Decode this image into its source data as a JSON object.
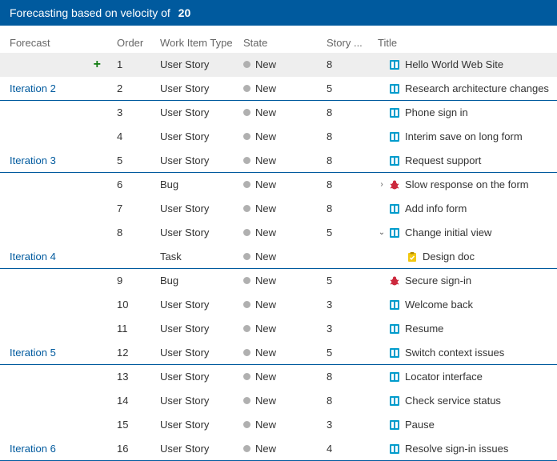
{
  "header": {
    "prefix": "Forecasting based on velocity of",
    "velocity": "20"
  },
  "columns": {
    "forecast": "Forecast",
    "order": "Order",
    "type": "Work Item Type",
    "state": "State",
    "story": "Story ...",
    "title": "Title"
  },
  "state_label": "New",
  "colors": {
    "story_icon": "#009ccc",
    "bug_icon": "#cc293d",
    "task_icon": "#f2c811",
    "accent": "#005a9e"
  },
  "rows": [
    {
      "forecast": "",
      "plus": true,
      "order": "1",
      "type": "User Story",
      "story": "8",
      "icon": "story",
      "title": "Hello World Web Site",
      "highlight": true
    },
    {
      "forecast": "Iteration 2",
      "plus": false,
      "order": "2",
      "type": "User Story",
      "story": "5",
      "icon": "story",
      "title": "Research architecture changes",
      "iteration": true
    },
    {
      "forecast": "",
      "plus": false,
      "order": "3",
      "type": "User Story",
      "story": "8",
      "icon": "story",
      "title": "Phone sign in"
    },
    {
      "forecast": "",
      "plus": false,
      "order": "4",
      "type": "User Story",
      "story": "8",
      "icon": "story",
      "title": "Interim save on long form"
    },
    {
      "forecast": "Iteration 3",
      "plus": false,
      "order": "5",
      "type": "User Story",
      "story": "8",
      "icon": "story",
      "title": "Request support",
      "iteration": true
    },
    {
      "forecast": "",
      "plus": false,
      "order": "6",
      "type": "Bug",
      "story": "8",
      "icon": "bug",
      "title": "Slow response on the form",
      "chev": "right"
    },
    {
      "forecast": "",
      "plus": false,
      "order": "7",
      "type": "User Story",
      "story": "8",
      "icon": "story",
      "title": "Add info form"
    },
    {
      "forecast": "",
      "plus": false,
      "order": "8",
      "type": "User Story",
      "story": "5",
      "icon": "story",
      "title": "Change initial view",
      "chev": "down"
    },
    {
      "forecast": "Iteration 4",
      "plus": false,
      "order": "",
      "type": "Task",
      "story": "",
      "icon": "task",
      "title": "Design doc",
      "iteration": true,
      "indent": true
    },
    {
      "forecast": "",
      "plus": false,
      "order": "9",
      "type": "Bug",
      "story": "5",
      "icon": "bug",
      "title": "Secure sign-in"
    },
    {
      "forecast": "",
      "plus": false,
      "order": "10",
      "type": "User Story",
      "story": "3",
      "icon": "story",
      "title": "Welcome back"
    },
    {
      "forecast": "",
      "plus": false,
      "order": "11",
      "type": "User Story",
      "story": "3",
      "icon": "story",
      "title": "Resume"
    },
    {
      "forecast": "Iteration 5",
      "plus": false,
      "order": "12",
      "type": "User Story",
      "story": "5",
      "icon": "story",
      "title": "Switch context issues",
      "iteration": true
    },
    {
      "forecast": "",
      "plus": false,
      "order": "13",
      "type": "User Story",
      "story": "8",
      "icon": "story",
      "title": "Locator interface"
    },
    {
      "forecast": "",
      "plus": false,
      "order": "14",
      "type": "User Story",
      "story": "8",
      "icon": "story",
      "title": "Check service status"
    },
    {
      "forecast": "",
      "plus": false,
      "order": "15",
      "type": "User Story",
      "story": "3",
      "icon": "story",
      "title": "Pause"
    },
    {
      "forecast": "Iteration 6",
      "plus": false,
      "order": "16",
      "type": "User Story",
      "story": "4",
      "icon": "story",
      "title": "Resolve sign-in issues",
      "iteration": true
    }
  ]
}
